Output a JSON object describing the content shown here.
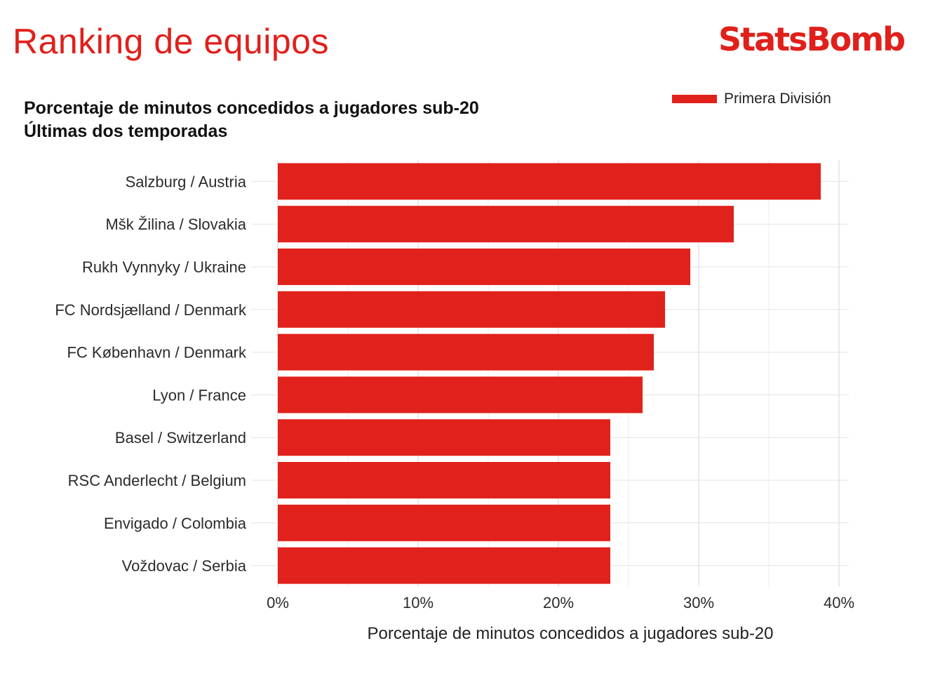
{
  "header": {
    "title": "Ranking de equipos",
    "brand": "StatsBomb"
  },
  "chart_data": {
    "type": "bar",
    "orientation": "horizontal",
    "title_line1": "Porcentaje de minutos concedidos a jugadores sub-20",
    "title_line2": "Últimas dos temporadas",
    "xlabel": "Porcentaje de minutos concedidos a jugadores sub-20",
    "ylabel": "",
    "xlim": [
      0,
      40
    ],
    "x_ticks": [
      "0%",
      "10%",
      "20%",
      "30%",
      "40%"
    ],
    "x_tick_values": [
      0,
      10,
      20,
      30,
      40
    ],
    "grid": true,
    "legend_position": "top-right",
    "categories": [
      "Salzburg / Austria",
      "Mšk Žilina / Slovakia",
      "Rukh Vynnyky / Ukraine",
      "FC Nordsjælland / Denmark",
      "FC København / Denmark",
      "Lyon / France",
      "Basel / Switzerland",
      "RSC Anderlecht / Belgium",
      "Envigado / Colombia",
      "Voždovac / Serbia"
    ],
    "series": [
      {
        "name": "Primera División",
        "color": "#e1211b",
        "values": [
          38.7,
          32.5,
          29.4,
          27.6,
          26.8,
          26.0,
          23.7,
          23.7,
          23.7,
          23.7
        ]
      }
    ]
  }
}
